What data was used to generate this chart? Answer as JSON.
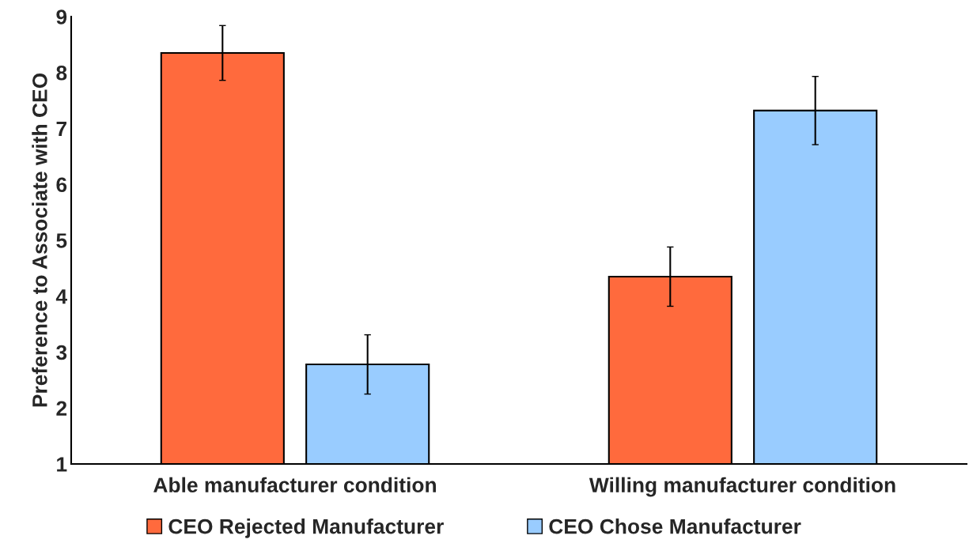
{
  "chart_data": {
    "type": "bar",
    "ylabel": "Preference to Associate with CEO",
    "categories": [
      "Able manufacturer condition",
      "Willing manufacturer condition"
    ],
    "series": [
      {
        "name": "CEO Rejected Manufacturer",
        "color": "#ff6a3d",
        "values": [
          8.35,
          4.35
        ],
        "errors": [
          0.49,
          0.53
        ]
      },
      {
        "name": "CEO Chose Manufacturer",
        "color": "#99ccff",
        "values": [
          2.78,
          7.32
        ],
        "errors": [
          0.53,
          0.61
        ]
      }
    ],
    "ylim": [
      1,
      9
    ],
    "yticks": [
      1,
      2,
      3,
      4,
      5,
      6,
      7,
      8,
      9
    ],
    "grid": false,
    "legend": "bottom"
  }
}
